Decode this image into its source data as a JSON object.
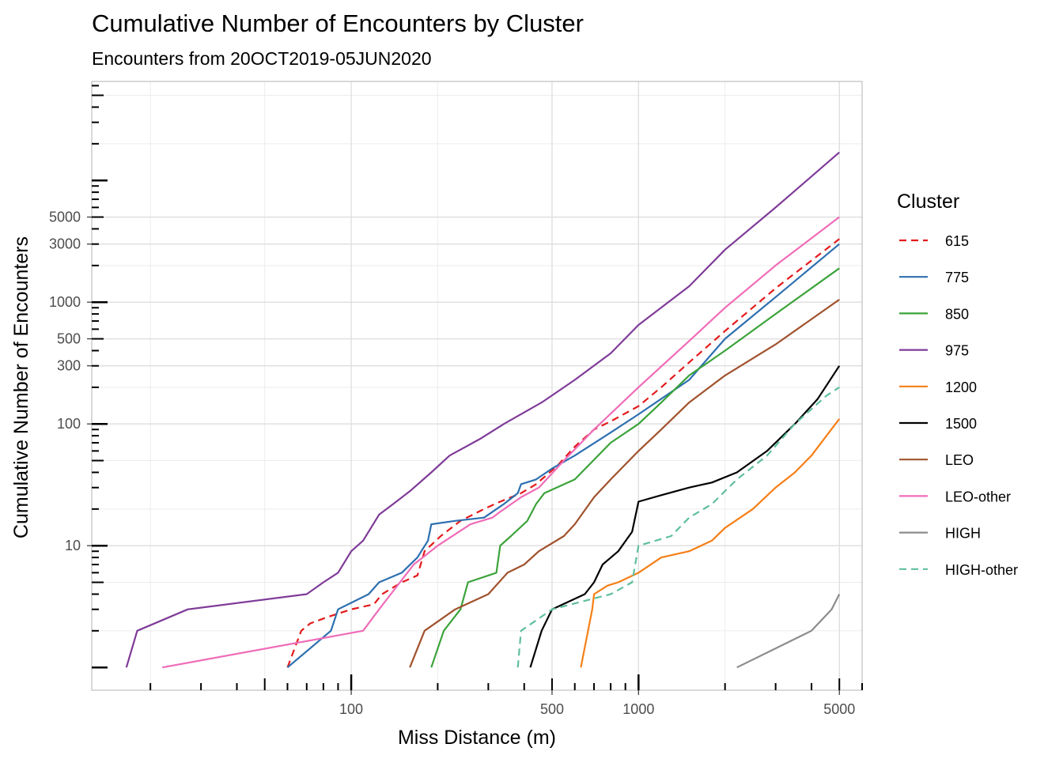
{
  "chart_data": {
    "type": "line",
    "title": "Cumulative Number of Encounters by Cluster",
    "subtitle": "Encounters from 20OCT2019-05JUN2020",
    "xlabel": "Miss Distance (m)",
    "ylabel": "Cumulative Number of Encounters",
    "x_scale": "log10",
    "y_scale": "log10",
    "xlim": [
      12.5,
      6000
    ],
    "ylim": [
      0.65,
      65000
    ],
    "x_ticks": [
      100,
      500,
      1000,
      5000
    ],
    "x_tick_labels": [
      "100",
      "500",
      "1000",
      "5000"
    ],
    "y_ticks": [
      10,
      100,
      300,
      500,
      1000,
      3000,
      5000
    ],
    "y_tick_labels": [
      "10",
      "100",
      "300",
      "500",
      "1000",
      "3000",
      "5000"
    ],
    "grid": true,
    "legend_title": "Cluster",
    "legend_position": "right",
    "series": [
      {
        "name": "615",
        "color": "#e41a1c",
        "dashed": true,
        "points": [
          [
            60,
            1
          ],
          [
            67,
            2
          ],
          [
            72,
            2.3
          ],
          [
            83,
            2.6
          ],
          [
            100,
            3
          ],
          [
            120,
            3.3
          ],
          [
            128,
            4
          ],
          [
            150,
            5
          ],
          [
            170,
            5.7
          ],
          [
            180,
            9
          ],
          [
            205,
            12
          ],
          [
            240,
            16
          ],
          [
            290,
            20
          ],
          [
            330,
            23
          ],
          [
            390,
            27
          ],
          [
            440,
            32
          ],
          [
            520,
            45
          ],
          [
            600,
            65
          ],
          [
            700,
            90
          ],
          [
            800,
            105
          ],
          [
            1000,
            140
          ],
          [
            1200,
            200
          ],
          [
            1500,
            320
          ],
          [
            2000,
            580
          ],
          [
            3000,
            1300
          ],
          [
            5000,
            3300
          ]
        ]
      },
      {
        "name": "775",
        "color": "#2d6fb0",
        "points": [
          [
            60,
            1
          ],
          [
            85,
            2
          ],
          [
            90,
            3
          ],
          [
            115,
            4
          ],
          [
            125,
            5
          ],
          [
            150,
            6
          ],
          [
            170,
            8
          ],
          [
            185,
            11
          ],
          [
            190,
            15
          ],
          [
            230,
            16
          ],
          [
            290,
            17
          ],
          [
            340,
            22
          ],
          [
            380,
            27
          ],
          [
            390,
            32
          ],
          [
            440,
            35
          ],
          [
            500,
            43
          ],
          [
            600,
            55
          ],
          [
            800,
            85
          ],
          [
            1000,
            120
          ],
          [
            1500,
            230
          ],
          [
            2000,
            500
          ],
          [
            3000,
            1100
          ],
          [
            5000,
            3000
          ]
        ]
      },
      {
        "name": "850",
        "color": "#3ba33a",
        "points": [
          [
            190,
            1
          ],
          [
            210,
            2
          ],
          [
            240,
            3
          ],
          [
            255,
            5
          ],
          [
            320,
            6
          ],
          [
            330,
            10
          ],
          [
            360,
            12
          ],
          [
            410,
            16
          ],
          [
            440,
            22
          ],
          [
            470,
            27
          ],
          [
            600,
            35
          ],
          [
            800,
            70
          ],
          [
            1000,
            100
          ],
          [
            1200,
            150
          ],
          [
            1500,
            250
          ],
          [
            2000,
            400
          ],
          [
            3000,
            800
          ],
          [
            5000,
            1900
          ]
        ]
      },
      {
        "name": "975",
        "color": "#7f3b98",
        "points": [
          [
            16.5,
            1
          ],
          [
            18,
            2
          ],
          [
            27,
            3
          ],
          [
            70,
            4
          ],
          [
            80,
            5
          ],
          [
            90,
            6
          ],
          [
            100,
            9
          ],
          [
            110,
            11
          ],
          [
            125,
            18
          ],
          [
            140,
            22
          ],
          [
            160,
            28
          ],
          [
            190,
            40
          ],
          [
            220,
            55
          ],
          [
            280,
            75
          ],
          [
            340,
            100
          ],
          [
            460,
            150
          ],
          [
            600,
            230
          ],
          [
            800,
            380
          ],
          [
            1000,
            650
          ],
          [
            1500,
            1350
          ],
          [
            2000,
            2700
          ],
          [
            3000,
            6000
          ],
          [
            5000,
            17000
          ]
        ]
      },
      {
        "name": "1200",
        "color": "#f57f17",
        "points": [
          [
            630,
            1
          ],
          [
            690,
            3
          ],
          [
            700,
            4
          ],
          [
            780,
            4.7
          ],
          [
            850,
            5
          ],
          [
            1000,
            6
          ],
          [
            1200,
            8
          ],
          [
            1500,
            9
          ],
          [
            1800,
            11
          ],
          [
            2000,
            14
          ],
          [
            2500,
            20
          ],
          [
            3000,
            30
          ],
          [
            3500,
            40
          ],
          [
            4000,
            55
          ],
          [
            5000,
            110
          ]
        ]
      },
      {
        "name": "1500",
        "color": "#000000",
        "points": [
          [
            420,
            1
          ],
          [
            460,
            2
          ],
          [
            500,
            3
          ],
          [
            650,
            4
          ],
          [
            700,
            5
          ],
          [
            750,
            7
          ],
          [
            850,
            9
          ],
          [
            950,
            13
          ],
          [
            1000,
            23
          ],
          [
            1200,
            26
          ],
          [
            1500,
            30
          ],
          [
            1800,
            33
          ],
          [
            2200,
            40
          ],
          [
            2800,
            60
          ],
          [
            3500,
            100
          ],
          [
            4200,
            160
          ],
          [
            5000,
            300
          ]
        ]
      },
      {
        "name": "LEO",
        "color": "#a0522d",
        "points": [
          [
            160,
            1
          ],
          [
            180,
            2
          ],
          [
            230,
            3
          ],
          [
            300,
            4
          ],
          [
            350,
            6
          ],
          [
            400,
            7
          ],
          [
            450,
            9
          ],
          [
            550,
            12
          ],
          [
            600,
            15
          ],
          [
            700,
            25
          ],
          [
            800,
            35
          ],
          [
            1000,
            60
          ],
          [
            1200,
            90
          ],
          [
            1500,
            150
          ],
          [
            2000,
            250
          ],
          [
            3000,
            450
          ],
          [
            5000,
            1050
          ]
        ]
      },
      {
        "name": "LEO-other",
        "color": "#ef6cb8",
        "points": [
          [
            22,
            1
          ],
          [
            110,
            2
          ],
          [
            125,
            3
          ],
          [
            165,
            7
          ],
          [
            200,
            10
          ],
          [
            260,
            15
          ],
          [
            310,
            17
          ],
          [
            330,
            19
          ],
          [
            390,
            25
          ],
          [
            450,
            30
          ],
          [
            550,
            50
          ],
          [
            700,
            90
          ],
          [
            1000,
            200
          ],
          [
            1500,
            480
          ],
          [
            2000,
            900
          ],
          [
            3000,
            2000
          ],
          [
            5000,
            5000
          ]
        ]
      },
      {
        "name": "HIGH",
        "color": "#8c8c8c",
        "points": [
          [
            2200,
            1
          ],
          [
            4000,
            2
          ],
          [
            4700,
            3
          ],
          [
            5000,
            4
          ]
        ]
      },
      {
        "name": "HIGH-other",
        "color": "#5fbf9c",
        "dashed": true,
        "points": [
          [
            380,
            1
          ],
          [
            390,
            2
          ],
          [
            500,
            3
          ],
          [
            800,
            4
          ],
          [
            950,
            5
          ],
          [
            1000,
            10
          ],
          [
            1300,
            12
          ],
          [
            1500,
            17
          ],
          [
            1800,
            22
          ],
          [
            2200,
            35
          ],
          [
            2800,
            55
          ],
          [
            3500,
            100
          ],
          [
            4500,
            170
          ],
          [
            5000,
            200
          ]
        ]
      }
    ]
  }
}
